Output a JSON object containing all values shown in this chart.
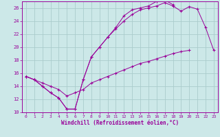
{
  "background_color": "#cce8e8",
  "grid_color": "#aacccc",
  "line_color": "#990099",
  "xlabel": "Windchill (Refroidissement éolien,°C)",
  "xlim": [
    -0.5,
    23.5
  ],
  "ylim": [
    10,
    27
  ],
  "yticks": [
    10,
    12,
    14,
    16,
    18,
    20,
    22,
    24,
    26
  ],
  "xticks": [
    0,
    1,
    2,
    3,
    4,
    5,
    6,
    7,
    8,
    9,
    10,
    11,
    12,
    13,
    14,
    15,
    16,
    17,
    18,
    19,
    20,
    21,
    22,
    23
  ],
  "series": [
    {
      "x": [
        0,
        1,
        2,
        3,
        4,
        5,
        6,
        7,
        8,
        9,
        10,
        11,
        12,
        13,
        14,
        15,
        16,
        17,
        18,
        19,
        20,
        21,
        22,
        23
      ],
      "y": [
        15.5,
        15.0,
        14.0,
        13.0,
        12.2,
        10.5,
        10.5,
        15.0,
        18.5,
        20.0,
        21.5,
        23.0,
        24.8,
        25.7,
        26.0,
        26.3,
        27.0,
        27.2,
        26.5,
        null,
        null,
        null,
        null,
        null
      ]
    },
    {
      "x": [
        0,
        1,
        2,
        3,
        4,
        5,
        6,
        7,
        8,
        9,
        10,
        11,
        12,
        13,
        14,
        15,
        16,
        17,
        18,
        19,
        20,
        21,
        22,
        23
      ],
      "y": [
        15.5,
        15.0,
        14.0,
        13.0,
        12.2,
        10.5,
        10.5,
        15.0,
        18.5,
        20.0,
        21.5,
        22.8,
        24.0,
        25.0,
        25.7,
        26.0,
        26.3,
        26.8,
        26.3,
        25.5,
        26.2,
        25.8,
        23.0,
        19.5
      ]
    },
    {
      "x": [
        0,
        1,
        2,
        3,
        4,
        5,
        6,
        7,
        8,
        9,
        10,
        11,
        12,
        13,
        14,
        15,
        16,
        17,
        18,
        19,
        20,
        21,
        22,
        23
      ],
      "y": [
        15.5,
        15.0,
        14.5,
        14.0,
        13.5,
        12.5,
        13.0,
        13.5,
        14.5,
        15.0,
        15.5,
        16.0,
        16.5,
        17.0,
        17.5,
        17.8,
        18.2,
        18.6,
        19.0,
        19.3,
        19.5,
        null,
        null,
        null
      ]
    }
  ]
}
